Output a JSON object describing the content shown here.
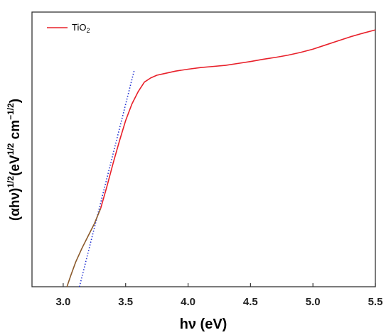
{
  "chart_data": {
    "type": "line",
    "xlabel": "hν (eV)",
    "ylabel_main": "(αhν)",
    "ylabel_exp1": "1/2",
    "ylabel_mid": "(eV",
    "ylabel_exp2": "1/2",
    "ylabel_unit": " cm",
    "ylabel_exp3": "−1/2",
    "ylabel_end": ")",
    "xlim": [
      2.75,
      5.5
    ],
    "ylim": [
      0,
      100
    ],
    "x_ticks": [
      3.0,
      3.5,
      4.0,
      4.5,
      5.0,
      5.5
    ],
    "x_tick_labels": [
      "3.0",
      "3.5",
      "4.0",
      "4.5",
      "5.0",
      "5.5"
    ],
    "y_tick_labels_shown": false,
    "legend": {
      "position": "top-left",
      "entry_main": "TiO",
      "entry_sub": "2"
    },
    "grid": false,
    "series": [
      {
        "name": "TiO2",
        "color": "#e8202a",
        "low_segment_color": "#8b5a2b",
        "x": [
          3.03,
          3.06,
          3.1,
          3.15,
          3.2,
          3.25,
          3.3,
          3.35,
          3.4,
          3.45,
          3.5,
          3.55,
          3.6,
          3.65,
          3.7,
          3.75,
          3.8,
          3.9,
          4.0,
          4.1,
          4.2,
          4.3,
          4.4,
          4.5,
          4.6,
          4.7,
          4.8,
          4.9,
          5.0,
          5.1,
          5.2,
          5.3,
          5.4,
          5.5
        ],
        "y": [
          0.0,
          4.0,
          9.0,
          14.0,
          18.5,
          23.0,
          28.5,
          36.5,
          45.0,
          53.0,
          60.5,
          66.5,
          71.0,
          74.5,
          76.0,
          77.0,
          77.5,
          78.5,
          79.2,
          79.8,
          80.2,
          80.6,
          81.3,
          82.0,
          82.8,
          83.5,
          84.3,
          85.3,
          86.5,
          88.0,
          89.5,
          91.0,
          92.3,
          93.5
        ]
      }
    ],
    "tangent": {
      "color": "#1f2fd1",
      "style": "dotted",
      "x": [
        3.13,
        3.57
      ],
      "y": [
        0.0,
        79.0
      ]
    }
  }
}
